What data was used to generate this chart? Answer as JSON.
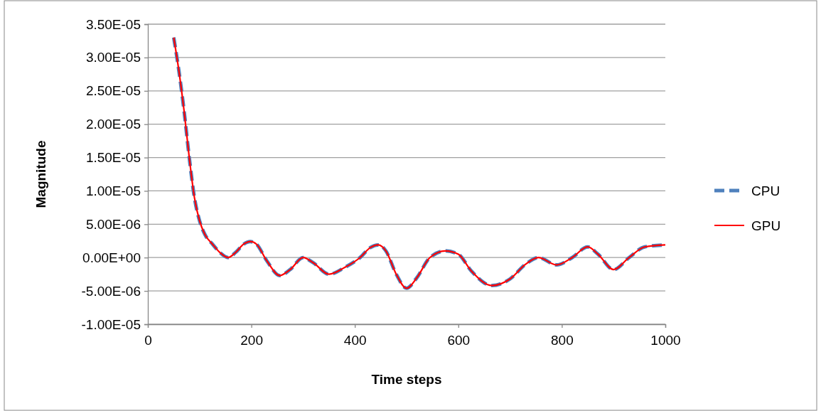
{
  "chart_data": {
    "type": "line",
    "xlabel": "Time steps",
    "ylabel": "Magnitude",
    "x": [
      50,
      60,
      70,
      80,
      90,
      100,
      110,
      125,
      140,
      155,
      170,
      185,
      198,
      210,
      230,
      255,
      275,
      300,
      320,
      350,
      380,
      410,
      430,
      445,
      460,
      480,
      500,
      520,
      545,
      575,
      600,
      625,
      665,
      700,
      730,
      755,
      790,
      820,
      850,
      870,
      900,
      930,
      960,
      1000
    ],
    "xlim": [
      0,
      1000
    ],
    "xticks": [
      0,
      200,
      400,
      600,
      800,
      1000
    ],
    "ylim": [
      -1e-05,
      3.5e-05
    ],
    "yticks": [
      {
        "value": -1e-05,
        "label": "-1.00E-05"
      },
      {
        "value": -5e-06,
        "label": "-5.00E-06"
      },
      {
        "value": 0,
        "label": "0.00E+00"
      },
      {
        "value": 5e-06,
        "label": "5.00E-06"
      },
      {
        "value": 1e-05,
        "label": "1.00E-05"
      },
      {
        "value": 1.5e-05,
        "label": "1.50E-05"
      },
      {
        "value": 2e-05,
        "label": "2.00E-05"
      },
      {
        "value": 2.5e-05,
        "label": "2.50E-05"
      },
      {
        "value": 3e-05,
        "label": "3.00E-05"
      },
      {
        "value": 3.5e-05,
        "label": "3.50E-05"
      }
    ],
    "grid": "y",
    "legend": "right",
    "series": [
      {
        "name": "CPU",
        "color": "#4f81bd",
        "line_style": "dashed",
        "values": [
          3.3e-05,
          2.8e-05,
          2.2e-05,
          1.5e-05,
          9e-06,
          5.5e-06,
          3.5e-06,
          2e-06,
          7e-07,
          0,
          8e-07,
          2e-06,
          2.4e-06,
          2e-06,
          -5e-07,
          -2.7e-06,
          -1.8e-06,
          0,
          -8e-07,
          -2.5e-06,
          -1.5e-06,
          0,
          1.5e-06,
          1.9e-06,
          1e-06,
          -2.5e-06,
          -4.6e-06,
          -3e-06,
          0,
          1e-06,
          5e-07,
          -2e-06,
          -4.2e-06,
          -3.2e-06,
          -1e-06,
          0,
          -1.1e-06,
          0,
          1.6e-06,
          5e-07,
          -1.8e-06,
          0,
          1.6e-06,
          1.9e-06
        ]
      },
      {
        "name": "GPU",
        "color": "#ff0000",
        "line_style": "solid",
        "values": [
          3.3e-05,
          2.8e-05,
          2.2e-05,
          1.5e-05,
          9e-06,
          5.5e-06,
          3.5e-06,
          2e-06,
          7e-07,
          0,
          8e-07,
          2e-06,
          2.4e-06,
          2e-06,
          -5e-07,
          -2.7e-06,
          -1.8e-06,
          0,
          -8e-07,
          -2.5e-06,
          -1.5e-06,
          0,
          1.5e-06,
          1.9e-06,
          1e-06,
          -2.5e-06,
          -4.6e-06,
          -3e-06,
          0,
          1e-06,
          5e-07,
          -2e-06,
          -4.2e-06,
          -3.2e-06,
          -1e-06,
          0,
          -1.1e-06,
          0,
          1.6e-06,
          5e-07,
          -1.8e-06,
          0,
          1.6e-06,
          1.9e-06
        ]
      }
    ]
  }
}
